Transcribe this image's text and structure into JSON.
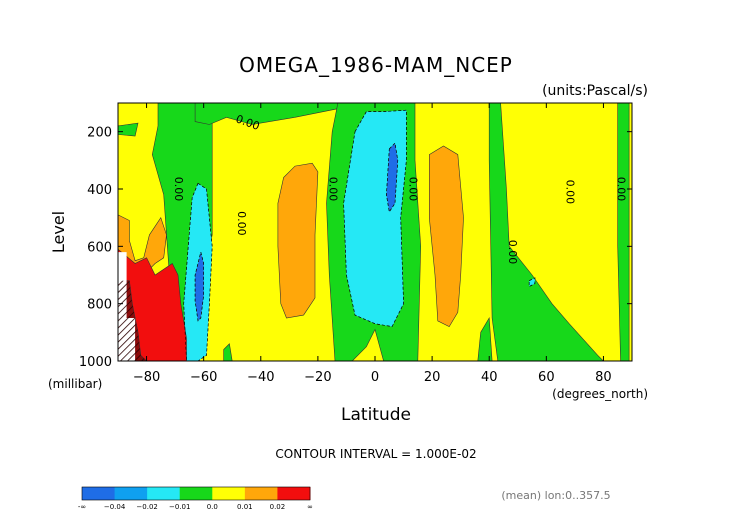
{
  "chart_data": {
    "type": "contour",
    "title": "OMEGA_1986-MAM_NCEP",
    "units_label": "(units:Pascal/s)",
    "xlabel": "Latitude",
    "xunit": "(degrees_north)",
    "ylabel": "Level",
    "yunit": "(millibar)",
    "xlim": [
      -90,
      90
    ],
    "ylim": [
      1000,
      100
    ],
    "y_inverted": true,
    "x_ticks": [
      -80,
      -60,
      -40,
      -20,
      0,
      20,
      40,
      60,
      80
    ],
    "x_tick_labels": [
      "−80",
      "−60",
      "−40",
      "−20",
      "0",
      "20",
      "40",
      "60",
      "80"
    ],
    "y_ticks": [
      200,
      400,
      600,
      800,
      1000
    ],
    "y_tick_labels": [
      "200",
      "400",
      "600",
      "800",
      "1000"
    ],
    "contour_labels": [
      "0.00",
      "0.00",
      "0.00",
      "0.00",
      "0.00",
      "0.00",
      "0.00",
      "0.00"
    ],
    "interval_text": "CONTOUR INTERVAL = 1.000E-02",
    "footer_text": "(mean) lon:0..357.5",
    "colorbar": {
      "colors": [
        "#1f6de6",
        "#0fa0f0",
        "#25e8f5",
        "#17d81a",
        "#ffff05",
        "#ffa70a",
        "#f20e0e"
      ],
      "labels": [
        "-∞",
        "−0.04",
        "−0.02",
        "−0.01",
        "0.0",
        "0.01",
        "0.02",
        "∞"
      ]
    },
    "regions": [
      {
        "level": 0.0,
        "color": "#ffff05",
        "points": [
          [
            -90,
            100
          ],
          [
            90,
            100
          ],
          [
            90,
            1000
          ],
          [
            -90,
            1000
          ]
        ]
      },
      {
        "level": 0.0,
        "color": "#17d81a",
        "points": [
          [
            -76,
            100
          ],
          [
            -57,
            100
          ],
          [
            -57,
            560
          ],
          [
            -63,
            840
          ],
          [
            -67,
            1000
          ],
          [
            -70,
            1000
          ],
          [
            -72,
            700
          ],
          [
            -74,
            420
          ],
          [
            -78,
            280
          ],
          [
            -76,
            180
          ]
        ]
      },
      {
        "level": 0.0,
        "color": "#17d81a",
        "points": [
          [
            -63,
            100
          ],
          [
            -13,
            100
          ],
          [
            -13,
            120
          ],
          [
            -28,
            150
          ],
          [
            -43,
            175
          ],
          [
            -52,
            150
          ],
          [
            -58,
            175
          ],
          [
            -63,
            165
          ]
        ]
      },
      {
        "level": 0.0,
        "color": "#17d81a",
        "points": [
          [
            -90,
            210
          ],
          [
            -84,
            215
          ],
          [
            -83,
            170
          ],
          [
            -90,
            180
          ]
        ]
      },
      {
        "level": 0.0,
        "color": "#17d81a",
        "points": [
          [
            -13,
            100
          ],
          [
            14,
            100
          ],
          [
            14,
            300
          ],
          [
            16,
            600
          ],
          [
            15,
            1000
          ],
          [
            3,
            1000
          ],
          [
            0,
            890
          ],
          [
            -3,
            950
          ],
          [
            -8,
            1000
          ],
          [
            -14,
            1000
          ],
          [
            -16,
            700
          ],
          [
            -17,
            450
          ],
          [
            -15,
            200
          ]
        ]
      },
      {
        "level": 0.0,
        "color": "#17d81a",
        "points": [
          [
            40,
            100
          ],
          [
            44,
            100
          ],
          [
            46,
            400
          ],
          [
            47,
            600
          ],
          [
            55,
            700
          ],
          [
            62,
            800
          ],
          [
            68,
            870
          ],
          [
            78,
            980
          ],
          [
            80,
            1000
          ],
          [
            43,
            1000
          ],
          [
            41,
            850
          ],
          [
            40,
            300
          ]
        ]
      },
      {
        "level": 0.0,
        "color": "#17d81a",
        "points": [
          [
            37,
            900
          ],
          [
            40,
            850
          ],
          [
            41,
            1000
          ],
          [
            36,
            1000
          ]
        ]
      },
      {
        "level": 0.0,
        "color": "#17d81a",
        "points": [
          [
            85,
            100
          ],
          [
            89,
            100
          ],
          [
            89,
            1000
          ],
          [
            86,
            1000
          ],
          [
            85,
            600
          ]
        ]
      },
      {
        "level": 0.0,
        "color": "#17d81a",
        "points": [
          [
            -53,
            960
          ],
          [
            -51,
            940
          ],
          [
            -50,
            1000
          ],
          [
            -53,
            1000
          ]
        ]
      },
      {
        "level": 0.01,
        "color": "#ffa70a",
        "points": [
          [
            -32,
            360
          ],
          [
            -28,
            320
          ],
          [
            -22,
            310
          ],
          [
            -20,
            340
          ],
          [
            -21,
            560
          ],
          [
            -21,
            780
          ],
          [
            -25,
            840
          ],
          [
            -31,
            850
          ],
          [
            -33,
            800
          ],
          [
            -34,
            600
          ],
          [
            -34,
            450
          ]
        ]
      },
      {
        "level": 0.01,
        "color": "#ffa70a",
        "points": [
          [
            19,
            280
          ],
          [
            24,
            250
          ],
          [
            29,
            280
          ],
          [
            31,
            500
          ],
          [
            30,
            700
          ],
          [
            29,
            830
          ],
          [
            26,
            880
          ],
          [
            22,
            860
          ],
          [
            21,
            700
          ],
          [
            19,
            500
          ]
        ]
      },
      {
        "level": 0.01,
        "color": "#ffa70a",
        "points": [
          [
            -82,
            1000
          ],
          [
            -84,
            850
          ],
          [
            -83,
            720
          ],
          [
            -80,
            690
          ],
          [
            -77,
            660
          ],
          [
            -74,
            640
          ],
          [
            -73,
            560
          ],
          [
            -75,
            500
          ],
          [
            -79,
            560
          ],
          [
            -81,
            640
          ],
          [
            -84,
            650
          ],
          [
            -86,
            580
          ],
          [
            -86,
            510
          ],
          [
            -90,
            490
          ],
          [
            -90,
            1000
          ]
        ]
      },
      {
        "level": -0.01,
        "color": "#25e8f5",
        "points": [
          [
            -62,
            380
          ],
          [
            -59,
            400
          ],
          [
            -57,
            600
          ],
          [
            -58,
            800
          ],
          [
            -59,
            980
          ],
          [
            -62,
            1000
          ],
          [
            -66,
            1000
          ],
          [
            -67,
            800
          ],
          [
            -65,
            550
          ],
          [
            -64,
            430
          ]
        ]
      },
      {
        "level": -0.01,
        "color": "#25e8f5",
        "points": [
          [
            -7,
            200
          ],
          [
            -3,
            130
          ],
          [
            3,
            130
          ],
          [
            11,
            125
          ],
          [
            11,
            300
          ],
          [
            9,
            500
          ],
          [
            10,
            800
          ],
          [
            6,
            880
          ],
          [
            0,
            870
          ],
          [
            -7,
            840
          ],
          [
            -10,
            700
          ],
          [
            -11,
            450
          ]
        ]
      },
      {
        "level": -0.01,
        "color": "#25e8f5",
        "points": [
          [
            54,
            720
          ],
          [
            56,
            710
          ],
          [
            56,
            730
          ],
          [
            54,
            740
          ]
        ]
      },
      {
        "level": -0.02,
        "color": "#1f6de6",
        "points": [
          [
            -61,
            620
          ],
          [
            -60,
            660
          ],
          [
            -60,
            770
          ],
          [
            -61,
            850
          ],
          [
            -62,
            860
          ],
          [
            -63,
            790
          ],
          [
            -63,
            700
          ]
        ]
      },
      {
        "level": -0.02,
        "color": "#1f6de6",
        "points": [
          [
            5,
            260
          ],
          [
            7,
            240
          ],
          [
            8,
            300
          ],
          [
            7,
            450
          ],
          [
            5,
            480
          ],
          [
            4,
            420
          ]
        ]
      },
      {
        "level": 0.02,
        "color": "#f20e0e",
        "points": [
          [
            -90,
            610
          ],
          [
            -84,
            660
          ],
          [
            -80,
            640
          ],
          [
            -77,
            700
          ],
          [
            -71,
            660
          ],
          [
            -69,
            700
          ],
          [
            -68,
            800
          ],
          [
            -66,
            920
          ],
          [
            -66,
            1000
          ],
          [
            -90,
            1000
          ]
        ]
      },
      {
        "level": 0.03,
        "color": "#8b0a0a",
        "points": [
          [
            -90,
            720
          ],
          [
            -86,
            720
          ],
          [
            -85,
            800
          ],
          [
            -83,
            900
          ],
          [
            -82,
            980
          ],
          [
            -80,
            1000
          ],
          [
            -90,
            1000
          ]
        ]
      },
      {
        "level": null,
        "color": "#ffffff",
        "points": [
          [
            -90,
            620
          ],
          [
            -87,
            620
          ],
          [
            -87,
            850
          ],
          [
            -84,
            850
          ],
          [
            -84,
            1000
          ],
          [
            -90,
            1000
          ]
        ]
      }
    ]
  }
}
